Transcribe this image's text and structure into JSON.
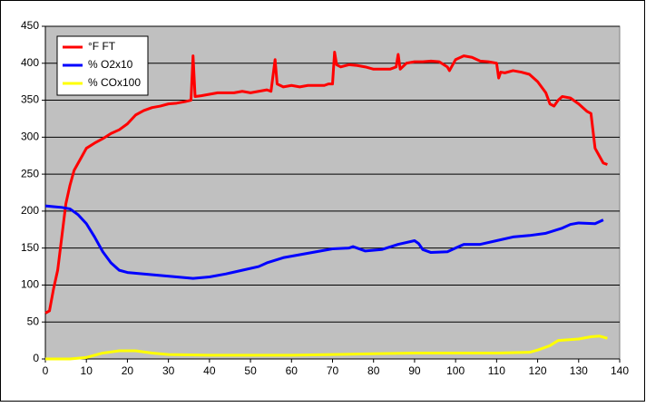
{
  "chart_data": {
    "type": "line",
    "xlim": [
      0,
      140
    ],
    "xticks": [
      0,
      10,
      20,
      30,
      40,
      50,
      60,
      70,
      80,
      90,
      100,
      110,
      120,
      130,
      140
    ],
    "ylim": [
      0,
      450
    ],
    "yticks": [
      0,
      50,
      100,
      150,
      200,
      250,
      300,
      350,
      400,
      450
    ],
    "grid": true,
    "legend": "top-left",
    "series": [
      {
        "name": "°F FT",
        "color": "#ff0000",
        "x": [
          0,
          1,
          2,
          3,
          4,
          5,
          6,
          7,
          8,
          9,
          10,
          12,
          14,
          16,
          18,
          20,
          22,
          24,
          26,
          28,
          30,
          32,
          34,
          35.5,
          36,
          36.5,
          38,
          40,
          42,
          44,
          46,
          48,
          50,
          52,
          54,
          55,
          56,
          56.5,
          58,
          60,
          62,
          64,
          66,
          68,
          69,
          70,
          70.5,
          71,
          72,
          74,
          76,
          78,
          80,
          82,
          84,
          85.5,
          86,
          86.5,
          88,
          90,
          92,
          94,
          96,
          98,
          98.5,
          100,
          102,
          104,
          106,
          108,
          110,
          110.5,
          111,
          112,
          114,
          116,
          118,
          120,
          122,
          123,
          124,
          125,
          126,
          128,
          130,
          132,
          133,
          134,
          135,
          136,
          137
        ],
        "values": [
          62,
          65,
          95,
          120,
          165,
          210,
          235,
          255,
          265,
          275,
          285,
          292,
          298,
          305,
          310,
          318,
          330,
          336,
          340,
          342,
          345,
          346,
          348,
          350,
          410,
          355,
          356,
          358,
          360,
          360,
          360,
          362,
          360,
          362,
          364,
          362,
          405,
          372,
          368,
          370,
          368,
          370,
          370,
          370,
          372,
          372,
          415,
          398,
          395,
          398,
          397,
          395,
          392,
          392,
          392,
          395,
          412,
          392,
          400,
          402,
          402,
          403,
          402,
          395,
          390,
          405,
          410,
          408,
          403,
          402,
          400,
          380,
          388,
          387,
          390,
          388,
          385,
          375,
          360,
          345,
          342,
          350,
          355,
          353,
          345,
          335,
          332,
          285,
          275,
          265,
          263
        ]
      },
      {
        "name": "% O2x10",
        "color": "#0000ff",
        "x": [
          0,
          2,
          4,
          6,
          8,
          10,
          12,
          14,
          16,
          18,
          20,
          24,
          28,
          32,
          36,
          40,
          44,
          48,
          52,
          54,
          58,
          62,
          66,
          70,
          74,
          75,
          78,
          82,
          86,
          90,
          91,
          92,
          94,
          98,
          100,
          102,
          106,
          110,
          114,
          118,
          122,
          126,
          128,
          130,
          134,
          136
        ],
        "values": [
          207,
          206,
          205,
          203,
          195,
          183,
          165,
          145,
          130,
          120,
          117,
          115,
          113,
          111,
          109,
          111,
          115,
          120,
          125,
          130,
          137,
          141,
          145,
          149,
          150,
          152,
          146,
          148,
          155,
          160,
          156,
          148,
          144,
          145,
          150,
          155,
          155,
          160,
          165,
          167,
          170,
          177,
          182,
          184,
          183,
          188
        ]
      },
      {
        "name": "% COx100",
        "color": "#ffff00",
        "x": [
          0,
          6,
          10,
          14,
          18,
          22,
          26,
          30,
          40,
          60,
          70,
          80,
          90,
          100,
          110,
          118,
          120,
          123,
          125,
          130,
          133,
          135,
          137
        ],
        "values": [
          0,
          0,
          2,
          8,
          11,
          11,
          8,
          6,
          5,
          5,
          6,
          7,
          8,
          8,
          8,
          9,
          12,
          18,
          25,
          27,
          30,
          31,
          28
        ]
      }
    ]
  }
}
